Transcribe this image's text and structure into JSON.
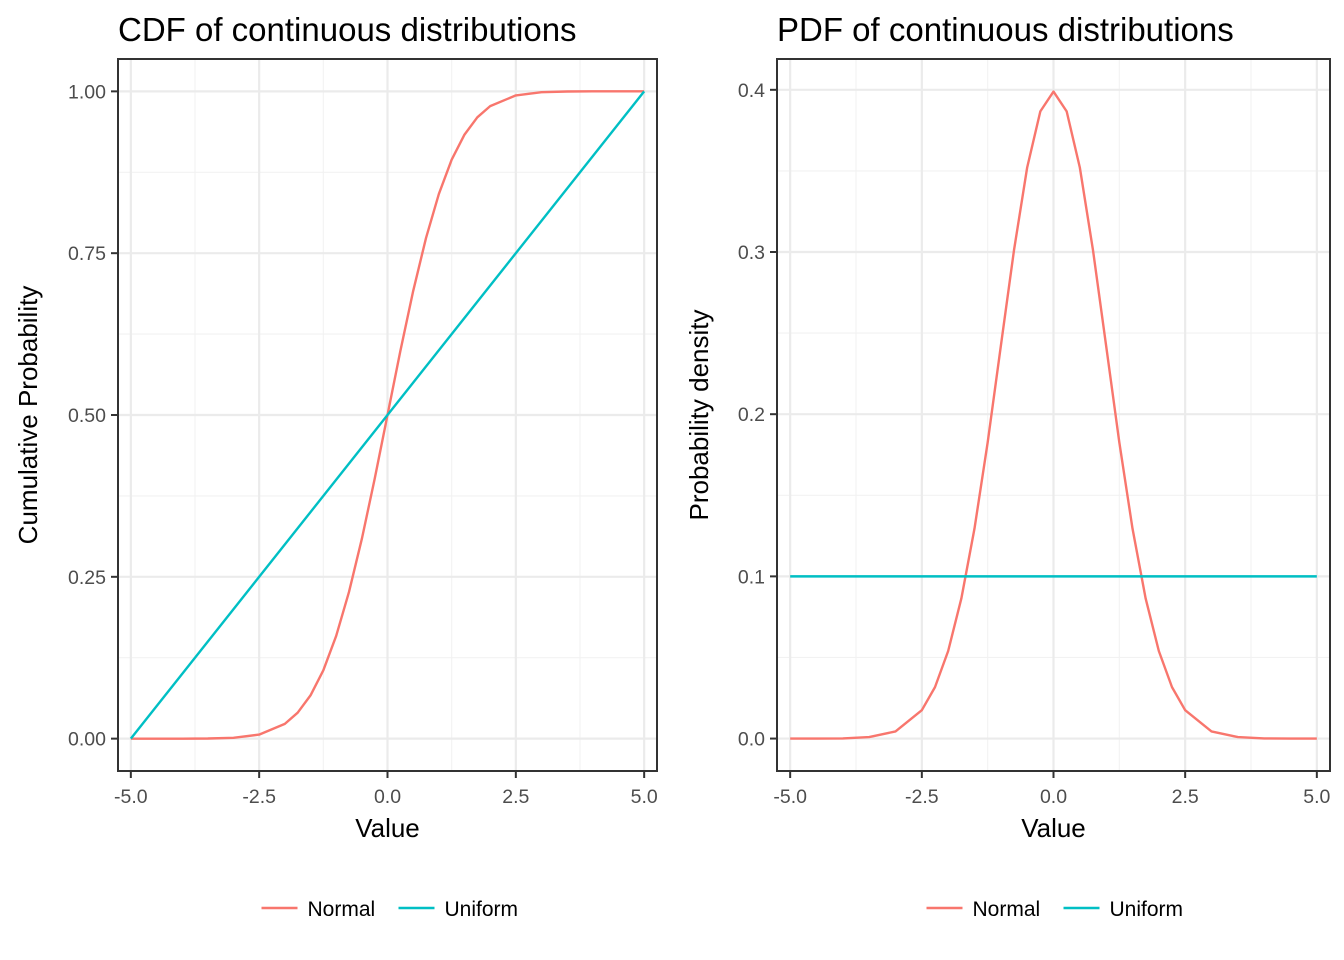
{
  "colors": {
    "Normal": "#F8766D",
    "Uniform": "#00BFC4"
  },
  "chart_data": [
    {
      "type": "line",
      "title": "CDF of continuous distributions",
      "xlabel": "Value",
      "ylabel": "Cumulative Probability",
      "xlim": [
        -5.25,
        5.25
      ],
      "ylim": [
        -0.05,
        1.05
      ],
      "x_ticks": [
        -5,
        -2.5,
        0,
        2.5,
        5
      ],
      "x_tick_labels": [
        "-5.0",
        "-2.5",
        "0.0",
        "2.5",
        "5.0"
      ],
      "y_ticks": [
        0,
        0.25,
        0.5,
        0.75,
        1
      ],
      "y_tick_labels": [
        "0.00",
        "0.25",
        "0.50",
        "0.75",
        "1.00"
      ],
      "grid": true,
      "legend": {
        "position": "bottom",
        "entries": [
          "Normal",
          "Uniform"
        ]
      },
      "series": [
        {
          "name": "Normal",
          "x": [
            -5,
            -4.5,
            -4,
            -3.5,
            -3,
            -2.5,
            -2,
            -1.75,
            -1.5,
            -1.25,
            -1,
            -0.75,
            -0.5,
            -0.25,
            0,
            0.25,
            0.5,
            0.75,
            1,
            1.25,
            1.5,
            1.75,
            2,
            2.5,
            3,
            3.5,
            4,
            4.5,
            5
          ],
          "y": [
            0.0,
            0.0,
            0.0,
            0.0002,
            0.0013,
            0.0062,
            0.0228,
            0.0401,
            0.0668,
            0.1056,
            0.1587,
            0.2266,
            0.3085,
            0.4013,
            0.5,
            0.5987,
            0.6915,
            0.7734,
            0.8413,
            0.8944,
            0.9332,
            0.9599,
            0.9772,
            0.9938,
            0.9987,
            0.9998,
            1.0,
            1.0,
            1.0
          ]
        },
        {
          "name": "Uniform",
          "x": [
            -5,
            5
          ],
          "y": [
            0,
            1
          ]
        }
      ]
    },
    {
      "type": "line",
      "title": "PDF of  continuous distributions",
      "xlabel": "Value",
      "ylabel": "Probability density",
      "xlim": [
        -5.25,
        5.25
      ],
      "ylim": [
        -0.02,
        0.419
      ],
      "x_ticks": [
        -5,
        -2.5,
        0,
        2.5,
        5
      ],
      "x_tick_labels": [
        "-5.0",
        "-2.5",
        "0.0",
        "2.5",
        "5.0"
      ],
      "y_ticks": [
        0,
        0.1,
        0.2,
        0.3,
        0.4
      ],
      "y_tick_labels": [
        "0.0",
        "0.1",
        "0.2",
        "0.3",
        "0.4"
      ],
      "grid": true,
      "legend": {
        "position": "bottom",
        "entries": [
          "Normal",
          "Uniform"
        ]
      },
      "series": [
        {
          "name": "Normal",
          "x": [
            -5,
            -4.5,
            -4,
            -3.5,
            -3,
            -2.5,
            -2.25,
            -2,
            -1.75,
            -1.5,
            -1.25,
            -1,
            -0.75,
            -0.5,
            -0.25,
            0,
            0.25,
            0.5,
            0.75,
            1,
            1.25,
            1.5,
            1.75,
            2,
            2.25,
            2.5,
            3,
            3.5,
            4,
            4.5,
            5
          ],
          "y": [
            0.0,
            0.0,
            0.0001,
            0.0009,
            0.0044,
            0.0175,
            0.0317,
            0.054,
            0.0863,
            0.1295,
            0.1826,
            0.242,
            0.3011,
            0.3521,
            0.3867,
            0.3989,
            0.3867,
            0.3521,
            0.3011,
            0.242,
            0.1826,
            0.1295,
            0.0863,
            0.054,
            0.0317,
            0.0175,
            0.0044,
            0.0009,
            0.0001,
            0.0,
            0.0
          ]
        },
        {
          "name": "Uniform",
          "x": [
            -5,
            5
          ],
          "y": [
            0.1,
            0.1
          ]
        }
      ]
    }
  ]
}
